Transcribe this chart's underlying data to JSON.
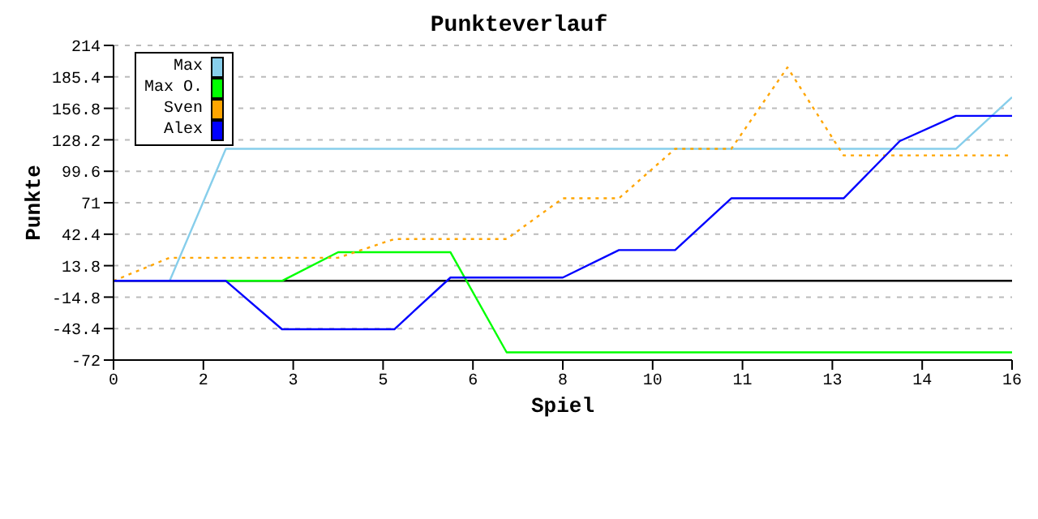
{
  "chart_data": {
    "type": "line",
    "title": "Punkteverlauf",
    "xlabel": "Spiel",
    "ylabel": "Punkte",
    "xlim": [
      0,
      16
    ],
    "xticks": [
      0,
      {
        "value": 1.6,
        "label": "2"
      },
      {
        "value": 3.2,
        "label": "3"
      },
      {
        "value": 4.8,
        "label": "5"
      },
      {
        "value": 6.4,
        "label": "6"
      },
      8,
      {
        "value": 9.6,
        "label": "10"
      },
      {
        "value": 11.2,
        "label": "11"
      },
      {
        "value": 12.8,
        "label": "13"
      },
      {
        "value": 14.4,
        "label": "14"
      },
      16
    ],
    "ylim": [
      -72,
      214
    ],
    "yticks": [
      -72,
      -43.4,
      -14.8,
      13.8,
      42.4,
      71,
      99.6,
      128.2,
      156.8,
      185.4,
      214
    ],
    "grid": "y",
    "legend": "top left",
    "marker": "none",
    "ref_lines": [
      {
        "axis": "y",
        "value": 0,
        "color": "#000000"
      }
    ],
    "series": [
      {
        "name": "Max",
        "color": "#87ceeb",
        "x": [
          1,
          2,
          3,
          4,
          5,
          6,
          7,
          8,
          9,
          10,
          11,
          12,
          13,
          14,
          15,
          16
        ],
        "values": [
          0,
          120,
          120,
          120,
          120,
          120,
          120,
          120,
          120,
          120,
          120,
          120,
          120,
          120,
          120,
          167
        ]
      },
      {
        "name": "Max O.",
        "color": "#00ff00",
        "x": [
          2,
          3,
          4,
          5,
          6,
          7,
          8,
          9,
          10,
          11,
          12,
          13,
          14,
          15,
          16
        ],
        "values": [
          0,
          0,
          26,
          26,
          26,
          -65,
          -65,
          -65,
          -65,
          -65,
          -65,
          -65,
          -65,
          -65,
          -65
        ]
      },
      {
        "name": "Sven",
        "color": "#ffa500",
        "line_style": "dotted",
        "x": [
          0,
          1,
          2,
          3,
          4,
          5,
          6,
          7,
          8,
          9,
          10,
          11,
          12,
          13,
          14,
          15,
          16
        ],
        "values": [
          0,
          21,
          21,
          21,
          21,
          38,
          38,
          38,
          75,
          75,
          120,
          120,
          194,
          114,
          114,
          114,
          114
        ]
      },
      {
        "name": "Alex",
        "color": "#0000ff",
        "x": [
          0,
          1,
          2,
          3,
          4,
          5,
          6,
          7,
          8,
          9,
          10,
          11,
          12,
          13,
          14,
          15,
          16
        ],
        "values": [
          0,
          0,
          0,
          -44,
          -44,
          -44,
          3,
          3,
          3,
          28,
          28,
          75,
          75,
          75,
          127,
          150,
          150
        ]
      }
    ]
  }
}
